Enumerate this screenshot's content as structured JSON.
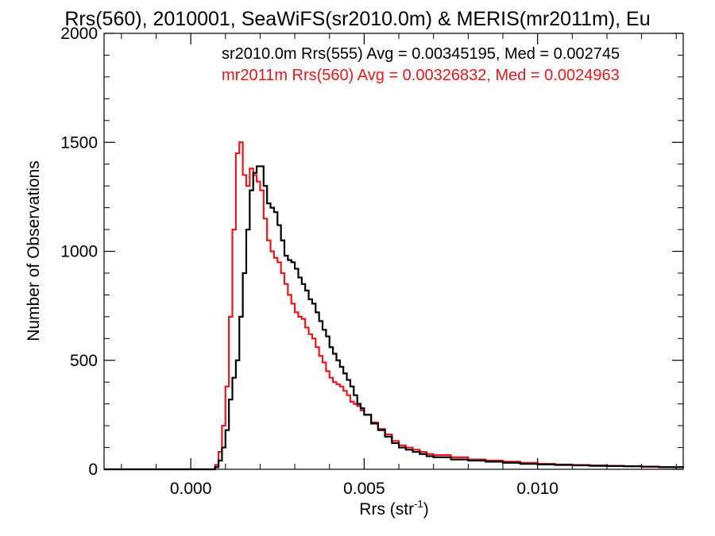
{
  "chart_data": {
    "type": "line",
    "title": "Rrs(560), 2010001, SeaWiFS(sr2010.0m) & MERIS(mr2011m), Eu",
    "xlabel": "Rrs (str",
    "xlabel_sup": "-1",
    "xlabel_close": ")",
    "ylabel": "Number of Observations",
    "xlim": [
      -0.0025,
      0.0142
    ],
    "ylim": [
      0,
      2000
    ],
    "x_ticks": [
      0.0,
      0.005,
      0.01
    ],
    "x_tick_labels": [
      "0.000",
      "0.005",
      "0.010"
    ],
    "y_ticks": [
      0,
      500,
      1000,
      1500,
      2000
    ],
    "y_tick_labels": [
      "0",
      "500",
      "1000",
      "1500",
      "2000"
    ],
    "grid": false,
    "annotations": [
      {
        "text": "sr2010.0m Rrs(555) Avg = 0.00345195, Med = 0.002745",
        "color": "#000000"
      },
      {
        "text": "mr2011m Rrs(560) Avg = 0.00326832, Med = 0.0024963",
        "color": "#e8171c"
      }
    ],
    "series": [
      {
        "color": "#000000",
        "x": [
          -0.0025,
          0.0006,
          0.0007,
          0.0008,
          0.0009,
          0.001,
          0.0011,
          0.0012,
          0.0013,
          0.0014,
          0.0015,
          0.0016,
          0.0017,
          0.0018,
          0.0019,
          0.002,
          0.0021,
          0.0022,
          0.0023,
          0.0024,
          0.0025,
          0.0026,
          0.0027,
          0.0028,
          0.0029,
          0.003,
          0.0031,
          0.0032,
          0.0033,
          0.0034,
          0.0035,
          0.0036,
          0.0037,
          0.0038,
          0.0039,
          0.004,
          0.0041,
          0.0042,
          0.0043,
          0.0044,
          0.0045,
          0.0046,
          0.0047,
          0.0048,
          0.0049,
          0.005,
          0.0052,
          0.0054,
          0.0056,
          0.0058,
          0.006,
          0.0062,
          0.0064,
          0.0066,
          0.0068,
          0.007,
          0.0075,
          0.008,
          0.0085,
          0.009,
          0.0095,
          0.01,
          0.0105,
          0.011,
          0.0115,
          0.012,
          0.0125,
          0.013,
          0.0135,
          0.0142
        ],
        "y": [
          0,
          0,
          10,
          40,
          100,
          180,
          320,
          420,
          500,
          700,
          900,
          1100,
          1280,
          1360,
          1390,
          1390,
          1300,
          1220,
          1200,
          1180,
          1120,
          1050,
          980,
          960,
          950,
          920,
          880,
          850,
          820,
          780,
          760,
          720,
          680,
          640,
          610,
          560,
          530,
          500,
          470,
          440,
          410,
          380,
          340,
          300,
          280,
          250,
          210,
          180,
          150,
          120,
          100,
          90,
          80,
          70,
          60,
          55,
          45,
          40,
          35,
          30,
          25,
          22,
          20,
          18,
          16,
          15,
          14,
          12,
          10,
          8
        ]
      },
      {
        "color": "#e8171c",
        "x": [
          -0.0025,
          0.0006,
          0.0007,
          0.0008,
          0.0009,
          0.001,
          0.0011,
          0.0012,
          0.0013,
          0.0014,
          0.0015,
          0.0016,
          0.0017,
          0.0018,
          0.0019,
          0.002,
          0.0021,
          0.0022,
          0.0023,
          0.0024,
          0.0025,
          0.0026,
          0.0027,
          0.0028,
          0.0029,
          0.003,
          0.0031,
          0.0032,
          0.0033,
          0.0034,
          0.0035,
          0.0036,
          0.0037,
          0.0038,
          0.0039,
          0.004,
          0.0041,
          0.0042,
          0.0043,
          0.0044,
          0.0045,
          0.0046,
          0.0047,
          0.0048,
          0.0049,
          0.005,
          0.0052,
          0.0054,
          0.0056,
          0.0058,
          0.006,
          0.0062,
          0.0064,
          0.0066,
          0.0068,
          0.007,
          0.0075,
          0.008,
          0.0085,
          0.009,
          0.0095,
          0.01,
          0.0105,
          0.011,
          0.0115,
          0.012,
          0.0125,
          0.013,
          0.0135,
          0.0142
        ],
        "y": [
          0,
          0,
          20,
          80,
          200,
          380,
          700,
          1100,
          1450,
          1500,
          1350,
          1300,
          1380,
          1350,
          1320,
          1280,
          1150,
          1050,
          1000,
          970,
          950,
          900,
          850,
          800,
          760,
          720,
          700,
          690,
          650,
          620,
          600,
          560,
          520,
          490,
          450,
          420,
          400,
          390,
          380,
          360,
          340,
          310,
          300,
          290,
          270,
          250,
          215,
          185,
          160,
          130,
          110,
          100,
          90,
          80,
          70,
          65,
          55,
          45,
          40,
          35,
          30,
          25,
          22,
          20,
          18,
          16,
          14,
          12,
          10,
          8
        ]
      }
    ]
  }
}
